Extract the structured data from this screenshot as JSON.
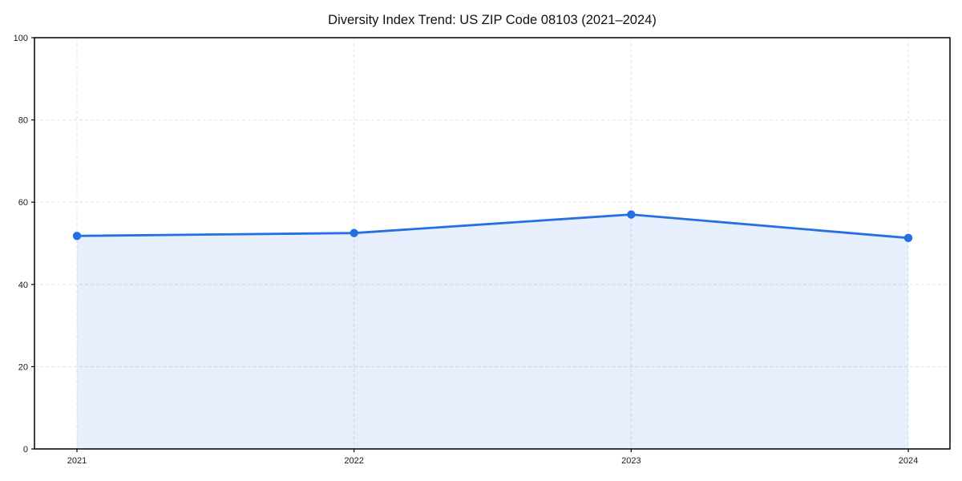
{
  "chart_data": {
    "type": "line",
    "title": "Diversity Index Trend: US ZIP Code 08103 (2021–2024)",
    "categories": [
      "2021",
      "2022",
      "2023",
      "2024"
    ],
    "values": [
      51.8,
      52.5,
      57.0,
      51.3
    ],
    "xlabel": "",
    "ylabel": "",
    "ylim": [
      0,
      100
    ],
    "yticks": [
      0,
      20,
      40,
      60,
      80,
      100
    ],
    "grid": true,
    "grid_style": "dashed",
    "area_fill": true,
    "legend": "none",
    "colors": {
      "line": "#2470e2",
      "marker": "#2470e2",
      "fill": "rgba(36,112,226,0.11)",
      "grid": "#e2e2e2",
      "spine": "#000000",
      "background": "#ffffff",
      "text": "#111111"
    }
  }
}
